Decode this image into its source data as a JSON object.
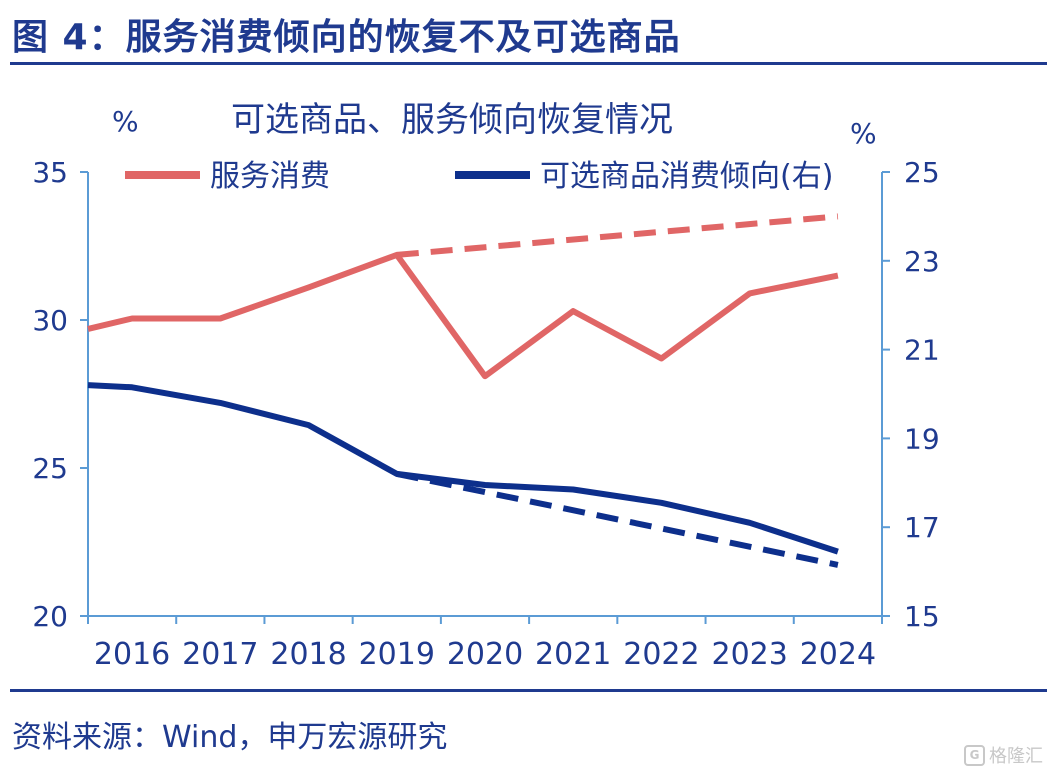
{
  "figure": {
    "title": "图 4：服务消费倾向的恢复不及可选商品",
    "source": "资料来源：Wind，申万宏源研究",
    "watermark": "格隆汇"
  },
  "colors": {
    "accent": "#1f3a8f",
    "series_services": "#e06666",
    "series_goods": "#0d2f8c",
    "axis": "#5b9bd5"
  },
  "chart_data": {
    "type": "line",
    "title": "可选商品、服务倾向恢复情况",
    "y_left_label": "%",
    "y_right_label": "%",
    "x": [
      "2016",
      "2017",
      "2018",
      "2019",
      "2020",
      "2021",
      "2022",
      "2023",
      "2024"
    ],
    "y_left": {
      "range": [
        20,
        35
      ],
      "ticks": [
        "20",
        "25",
        "30",
        "35"
      ]
    },
    "y_right": {
      "range": [
        15,
        25
      ],
      "ticks": [
        "15",
        "17",
        "19",
        "21",
        "23",
        "25"
      ]
    },
    "legend": [
      "服务消费",
      "可选商品消费倾向(右)"
    ],
    "legend_placement": "top",
    "grid": false,
    "series": [
      {
        "name": "服务消费",
        "axis": "left",
        "style": "solid",
        "points": [
          [
            2015.5,
            29.7
          ],
          [
            2016,
            30.05
          ],
          [
            2017,
            30.05
          ],
          [
            2018,
            31.1
          ],
          [
            2019,
            32.2
          ],
          [
            2020,
            28.1
          ],
          [
            2021,
            30.3
          ],
          [
            2022,
            28.7
          ],
          [
            2023,
            30.9
          ],
          [
            2024,
            31.5
          ]
        ]
      },
      {
        "name": "服务消费趋势",
        "axis": "left",
        "style": "dashed",
        "points": [
          [
            2019,
            32.2
          ],
          [
            2024,
            33.5
          ]
        ]
      },
      {
        "name": "可选商品消费倾向(右)",
        "axis": "right",
        "style": "solid",
        "points": [
          [
            2015.5,
            20.2
          ],
          [
            2016,
            20.15
          ],
          [
            2017,
            19.8
          ],
          [
            2018,
            19.3
          ],
          [
            2019,
            18.2
          ],
          [
            2020,
            17.95
          ],
          [
            2021,
            17.85
          ],
          [
            2022,
            17.55
          ],
          [
            2023,
            17.1
          ],
          [
            2024,
            16.45
          ]
        ]
      },
      {
        "name": "可选商品消费倾向趋势",
        "axis": "right",
        "style": "dashed",
        "points": [
          [
            2019,
            18.2
          ],
          [
            2024,
            16.15
          ]
        ]
      }
    ]
  }
}
